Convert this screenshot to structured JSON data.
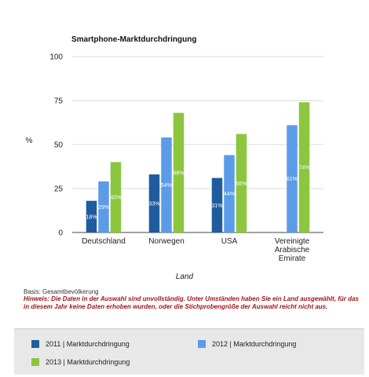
{
  "chart_data": {
    "type": "bar",
    "title": "Smartphone-Marktdurchdringung",
    "xlabel": "Land",
    "ylabel": "%",
    "ylim": [
      0,
      100
    ],
    "yticks": [
      "0",
      "25",
      "50",
      "75",
      "100"
    ],
    "grid": true,
    "legend_position": "bottom",
    "categories": [
      [
        "Deutschland"
      ],
      [
        "Norwegen"
      ],
      [
        "USA"
      ],
      [
        "Vereinigte",
        "Arabische",
        "Emirate"
      ]
    ],
    "series": [
      {
        "name": "2011 | Marktdurchdringung",
        "color": "#1F5C9E",
        "values": [
          18,
          33,
          31,
          null
        ],
        "labels": [
          "18%",
          "33%",
          "31%",
          ""
        ]
      },
      {
        "name": "2012 | Marktdurchdringung",
        "color": "#5B9BE8",
        "values": [
          29,
          54,
          44,
          61
        ],
        "labels": [
          "29%",
          "54%",
          "44%",
          "61%"
        ]
      },
      {
        "name": "2013 | Marktdurchdringung",
        "color": "#8CC63F",
        "values": [
          40,
          68,
          56,
          74
        ],
        "labels": [
          "40%",
          "68%",
          "56%",
          "74%"
        ]
      }
    ]
  },
  "notes": {
    "basis": "Basis: Gesamtbevölkerung",
    "hint": "Hinweis: Die Daten in der Auswahl sind unvollständig. Unter Umständen haben Sie ein Land ausgewählt, für das in diesem Jahr keine Daten erhoben wurden, oder die Stichprobengröße der Auswahl reicht nicht aus."
  }
}
